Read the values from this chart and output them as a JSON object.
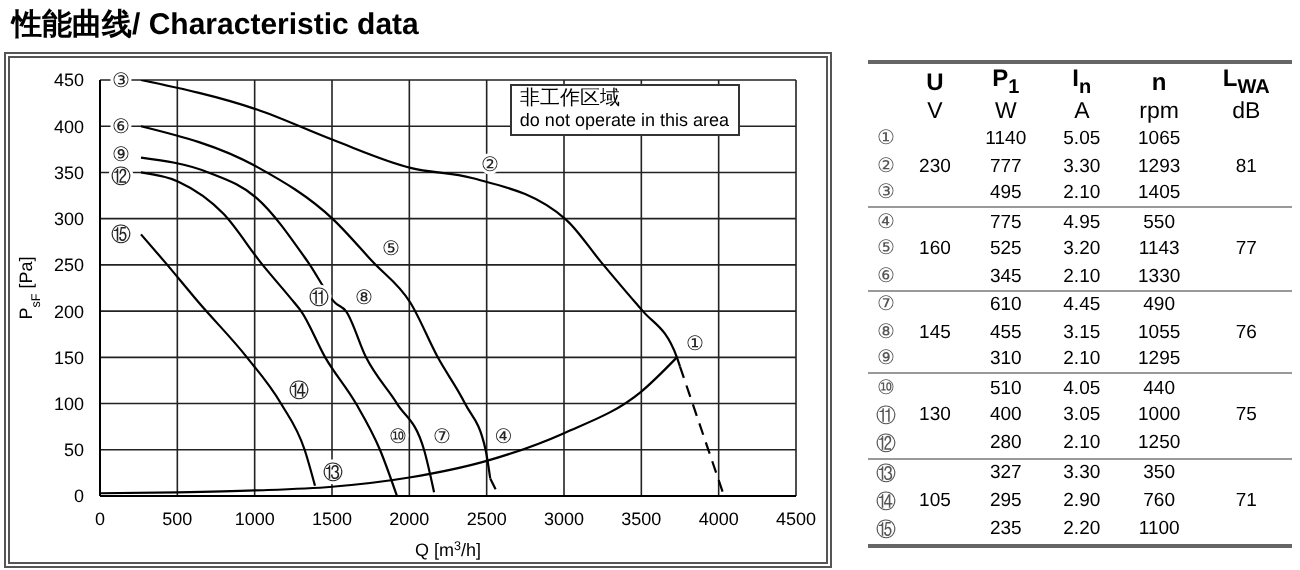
{
  "chart_data": [
    {
      "type": "line",
      "title": "性能曲线/ Characteristic data",
      "xlabel": "Q [m$^{3}$/h]",
      "ylabel": "P$_{sF}$ [Pa]",
      "xlim": [
        0,
        4500
      ],
      "xticks": [
        0,
        500,
        1000,
        1500,
        2000,
        2500,
        3000,
        3500,
        4000,
        4500
      ],
      "ylim": [
        0,
        450
      ],
      "yticks": [
        0,
        50,
        100,
        150,
        200,
        250,
        300,
        350,
        400,
        450
      ],
      "grid": true,
      "marker": "none",
      "series": [
        {
          "color": "#000000",
          "line_style": "solid",
          "x": [
            265,
            1015,
            1509,
            2007,
            2405,
            3013,
            3240,
            3463,
            3510,
            3730,
            3750
          ],
          "values": [
            450,
            418,
            385,
            355,
            344,
            299,
            253,
            209,
            200,
            150,
            140
          ]
        },
        {
          "color": "#000000",
          "line_style": "dashed",
          "x": [
            3750,
            4035
          ],
          "values": [
            140,
            0
          ]
        },
        {
          "color": "#000000",
          "line_style": "solid",
          "x": [
            265,
            1015,
            1509,
            1765,
            2007,
            2184,
            2360,
            2493,
            2523
          ],
          "values": [
            400,
            356,
            299,
            253,
            209,
            150,
            100,
            50,
            19
          ]
        },
        {
          "color": "#000000",
          "line_style": "dashed",
          "x": [
            2523,
            2580
          ],
          "values": [
            19,
            0
          ]
        },
        {
          "color": "#000000",
          "line_style": "solid",
          "x": [
            265,
            700,
            1015,
            1345,
            1520,
            1590,
            1720,
            1920,
            2095,
            2160
          ],
          "values": [
            366,
            350,
            322,
            253,
            209,
            200,
            150,
            100,
            50,
            4
          ]
        },
        {
          "color": "#000000",
          "line_style": "solid",
          "x": [
            265,
            507,
            800,
            1037,
            1257,
            1300,
            1456,
            1655,
            1810,
            1920
          ],
          "values": [
            350,
            340,
            305,
            253,
            209,
            200,
            150,
            100,
            50,
            0
          ]
        },
        {
          "color": "#000000",
          "line_style": "solid",
          "x": [
            265,
            420,
            640,
            950,
            1170,
            1323,
            1390
          ],
          "values": [
            283,
            253,
            209,
            150,
            100,
            50,
            11
          ]
        },
        {
          "color": "#000000",
          "line_style": "solid",
          "x": [
            0,
            500,
            1000,
            1500,
            2000,
            2500,
            3000,
            3500,
            3730
          ],
          "values": [
            3,
            4,
            6,
            10,
            20,
            38,
            68,
            113,
            150
          ]
        }
      ],
      "annotations": [
        {
          "text": "①",
          "x": 3730,
          "y": 150
        },
        {
          "text": "②",
          "x": 2405,
          "y": 344
        },
        {
          "text": "③",
          "x": 265,
          "y": 450
        },
        {
          "text": "④",
          "x": 2493,
          "y": 50
        },
        {
          "text": "⑤",
          "x": 1765,
          "y": 253
        },
        {
          "text": "⑥",
          "x": 265,
          "y": 400
        },
        {
          "text": "⑦",
          "x": 2095,
          "y": 50
        },
        {
          "text": "⑧",
          "x": 1590,
          "y": 200
        },
        {
          "text": "⑨",
          "x": 265,
          "y": 366
        },
        {
          "text": "⑩",
          "x": 1810,
          "y": 50
        },
        {
          "text": "⑪",
          "x": 1300,
          "y": 200
        },
        {
          "text": "⑫",
          "x": 265,
          "y": 350
        },
        {
          "text": "⑬",
          "x": 1390,
          "y": 11
        },
        {
          "text": "⑭",
          "x": 1170,
          "y": 100
        },
        {
          "text": "⑮",
          "x": 265,
          "y": 283
        },
        "非工作区域",
        "do not operate in this area"
      ]
    },
    {
      "type": "other",
      "categories": [
        "U",
        "P$_{1}$",
        "I$_{n}$",
        "n",
        "L$_{WA}$"
      ],
      "y_categories": [
        null,
        "①",
        "②",
        "③",
        "④",
        "⑤",
        "⑥",
        "⑦",
        "⑧",
        "⑨",
        "⑩",
        "⑪",
        "⑫",
        "⑬",
        "⑭",
        "⑮"
      ],
      "cell_labels": [
        [
          "V",
          "W",
          "A",
          "rpm",
          "dB"
        ],
        [
          null,
          "1140",
          "5.05",
          "1065",
          null
        ],
        [
          "230",
          "777",
          "3.30",
          "1293",
          "81"
        ],
        [
          null,
          "495",
          "2.10",
          "1405",
          null
        ],
        [
          null,
          "775",
          "4.95",
          "550",
          null
        ],
        [
          "160",
          "525",
          "3.20",
          "1143",
          "77"
        ],
        [
          null,
          "345",
          "2.10",
          "1330",
          null
        ],
        [
          null,
          "610",
          "4.45",
          "490",
          null
        ],
        [
          "145",
          "455",
          "3.15",
          "1055",
          "76"
        ],
        [
          null,
          "310",
          "2.10",
          "1295",
          null
        ],
        [
          null,
          "510",
          "4.05",
          "440",
          null
        ],
        [
          "130",
          "400",
          "3.05",
          "1000",
          "75"
        ],
        [
          null,
          "280",
          "2.10",
          "1250",
          null
        ],
        [
          null,
          "327",
          "3.30",
          "350",
          null
        ],
        [
          "105",
          "295",
          "2.90",
          "760",
          "71"
        ],
        [
          null,
          "235",
          "2.20",
          "1100",
          null
        ]
      ]
    }
  ]
}
